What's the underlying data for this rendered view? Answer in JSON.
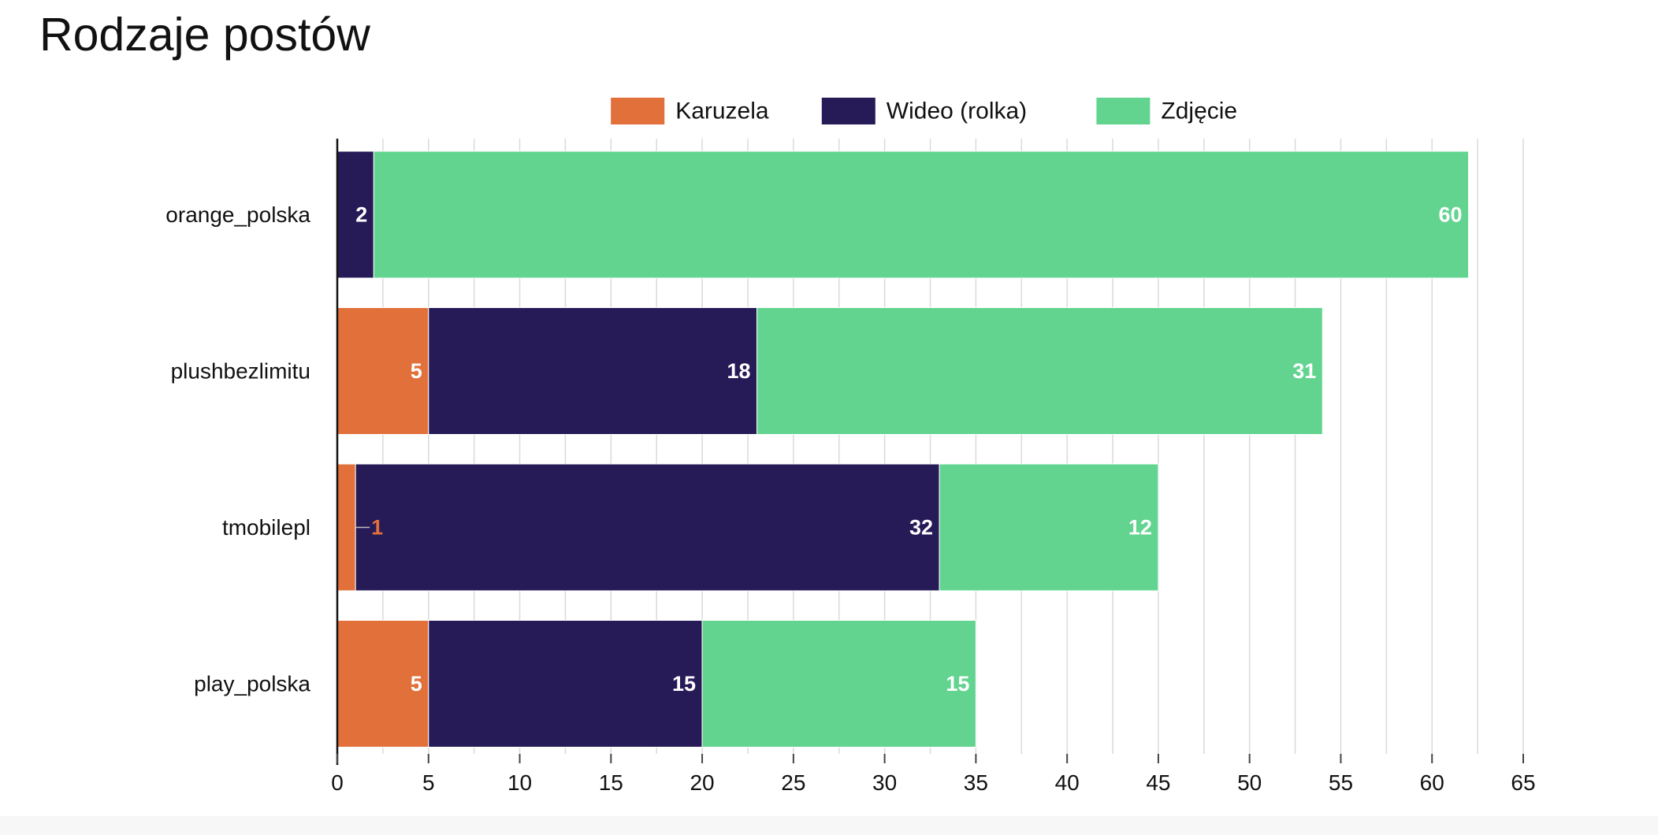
{
  "chart_data": {
    "type": "bar",
    "orientation": "horizontal",
    "stacked": true,
    "title": "Rodzaje postów",
    "categories": [
      "orange_polska",
      "plushbezlimitu",
      "tmobilepl",
      "play_polska"
    ],
    "series": [
      {
        "name": "Karuzela",
        "color": "#E2703A",
        "values": [
          0,
          5,
          1,
          5
        ]
      },
      {
        "name": "Wideo (rolka)",
        "color": "#261A57",
        "values": [
          2,
          18,
          32,
          15
        ]
      },
      {
        "name": "Zdjęcie",
        "color": "#62D490",
        "values": [
          60,
          31,
          12,
          15
        ]
      }
    ],
    "x_ticks": [
      0,
      5,
      10,
      15,
      20,
      25,
      30,
      35,
      40,
      45,
      50,
      55,
      60,
      65
    ],
    "xlim": [
      0,
      65
    ],
    "minor_grid_step": 2.5,
    "legend_position": "top",
    "xlabel": "",
    "ylabel": "",
    "data_labels": "inside-end"
  }
}
